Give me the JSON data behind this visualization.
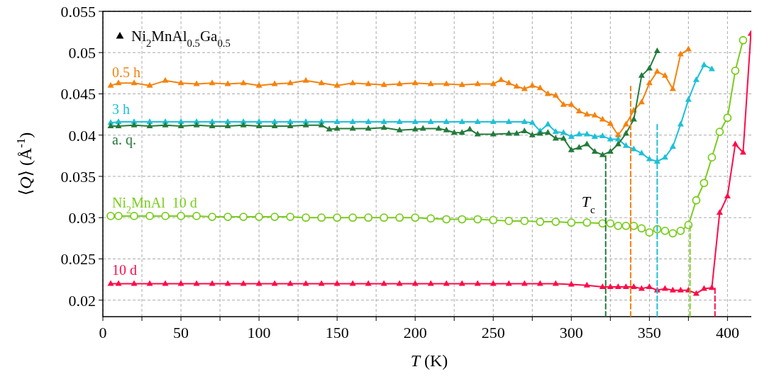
{
  "chart_data": {
    "type": "line",
    "xlabel": "T (K)",
    "ylabel": "⟨Q⟩ (Å$^{-1}$)",
    "xlim": [
      0,
      418
    ],
    "ylim": [
      0.018,
      0.055
    ],
    "xticks": [
      0,
      {
        "value": 25,
        "label": null
      },
      50,
      {
        "value": 75,
        "label": null
      },
      100,
      {
        "value": 125,
        "label": null
      },
      150,
      {
        "value": 175,
        "label": null
      },
      200,
      {
        "value": 225,
        "label": null
      },
      250,
      {
        "value": 275,
        "label": null
      },
      300,
      {
        "value": 325,
        "label": null
      },
      350,
      {
        "value": 375,
        "label": null
      },
      400
    ],
    "yticks": [
      0.02,
      0.025,
      0.03,
      0.035,
      0.04,
      0.045,
      0.05,
      0.055
    ],
    "grid": true,
    "marker": "triangle",
    "line_style": "solid",
    "annotations": [
      "Ni$_{2}$MnAl$_{0.5}$Ga$_{0.5}$",
      "T$_{c}$"
    ],
    "series": [
      {
        "name": "0.5 h",
        "color": "#f5820d",
        "x": [
          5,
          10,
          20,
          30,
          40,
          50,
          60,
          70,
          80,
          90,
          100,
          110,
          120,
          130,
          140,
          150,
          160,
          170,
          180,
          190,
          200,
          210,
          220,
          230,
          240,
          250,
          255,
          260,
          265,
          270,
          275,
          280,
          285,
          290,
          295,
          300,
          305,
          310,
          315,
          320,
          325,
          330,
          335,
          340,
          345,
          350,
          355,
          360,
          365,
          370,
          375
        ],
        "values": [
          0.046,
          0.0463,
          0.0463,
          0.046,
          0.0466,
          0.0463,
          0.0462,
          0.0463,
          0.0462,
          0.0463,
          0.046,
          0.0462,
          0.0463,
          0.0466,
          0.0463,
          0.046,
          0.0463,
          0.0462,
          0.0461,
          0.0462,
          0.0463,
          0.0462,
          0.0462,
          0.0461,
          0.0462,
          0.0462,
          0.0467,
          0.0463,
          0.0459,
          0.0456,
          0.046,
          0.0457,
          0.045,
          0.0448,
          0.0437,
          0.0437,
          0.0429,
          0.0425,
          0.0424,
          0.0419,
          0.0414,
          0.04,
          0.0413,
          0.043,
          0.044,
          0.0463,
          0.0477,
          0.0472,
          0.0456,
          0.0498,
          0.0504
        ]
      },
      {
        "name": "3 h",
        "color": "#1ec0d8",
        "x": [
          5,
          10,
          20,
          30,
          40,
          50,
          60,
          70,
          80,
          90,
          100,
          110,
          120,
          130,
          140,
          150,
          160,
          170,
          180,
          190,
          200,
          210,
          220,
          230,
          240,
          250,
          260,
          270,
          275,
          280,
          285,
          290,
          295,
          300,
          305,
          310,
          315,
          320,
          325,
          330,
          335,
          340,
          345,
          350,
          355,
          360,
          365,
          370,
          375,
          380,
          385,
          390
        ],
        "values": [
          0.0415,
          0.0416,
          0.0416,
          0.0416,
          0.0416,
          0.0416,
          0.0416,
          0.0416,
          0.0416,
          0.0416,
          0.0416,
          0.0416,
          0.0416,
          0.0416,
          0.0416,
          0.0416,
          0.0416,
          0.0416,
          0.0416,
          0.0416,
          0.0416,
          0.0416,
          0.0416,
          0.0416,
          0.0416,
          0.0416,
          0.0416,
          0.0416,
          0.0415,
          0.0405,
          0.0413,
          0.0404,
          0.0403,
          0.0398,
          0.0401,
          0.0401,
          0.0398,
          0.0399,
          0.0395,
          0.0395,
          0.0387,
          0.0383,
          0.0378,
          0.0371,
          0.0368,
          0.0373,
          0.0386,
          0.0413,
          0.0443,
          0.0467,
          0.0485,
          0.048
        ]
      },
      {
        "name": "a. q.",
        "color": "#237a3a",
        "x": [
          5,
          10,
          20,
          30,
          40,
          50,
          60,
          70,
          80,
          90,
          100,
          110,
          120,
          130,
          140,
          145,
          150,
          160,
          170,
          180,
          190,
          200,
          205,
          215,
          220,
          225,
          230,
          235,
          240,
          250,
          260,
          265,
          270,
          275,
          280,
          285,
          290,
          295,
          300,
          305,
          310,
          315,
          320,
          325,
          330,
          335,
          340,
          345,
          350,
          355
        ],
        "values": [
          0.0411,
          0.0411,
          0.0412,
          0.0411,
          0.0412,
          0.0411,
          0.0412,
          0.0411,
          0.0411,
          0.0412,
          0.0411,
          0.0411,
          0.0411,
          0.0412,
          0.0412,
          0.0407,
          0.0408,
          0.0408,
          0.0408,
          0.0409,
          0.0406,
          0.0407,
          0.0408,
          0.0408,
          0.0406,
          0.0403,
          0.0403,
          0.0407,
          0.0401,
          0.0401,
          0.0402,
          0.0402,
          0.0405,
          0.04,
          0.0402,
          0.0403,
          0.0396,
          0.0396,
          0.0382,
          0.0385,
          0.0389,
          0.038,
          0.0376,
          0.038,
          0.0389,
          0.0402,
          0.0419,
          0.0472,
          0.0481,
          0.0502
        ]
      },
      {
        "name": "Ni$_{2}$MnAl  10 d",
        "color": "#7acc1e",
        "marker": "circle",
        "x": [
          5,
          10,
          20,
          30,
          40,
          50,
          60,
          70,
          80,
          90,
          100,
          110,
          120,
          130,
          140,
          150,
          160,
          170,
          180,
          190,
          200,
          210,
          220,
          230,
          240,
          250,
          260,
          270,
          280,
          290,
          300,
          310,
          320,
          325,
          330,
          335,
          340,
          345,
          350,
          355,
          360,
          365,
          370,
          375,
          380,
          385,
          390,
          395,
          400,
          405,
          410
        ],
        "values": [
          0.0302,
          0.0302,
          0.0302,
          0.0302,
          0.0302,
          0.0302,
          0.0302,
          0.0301,
          0.0301,
          0.0301,
          0.0301,
          0.0301,
          0.0301,
          0.03,
          0.03,
          0.03,
          0.03,
          0.03,
          0.03,
          0.03,
          0.03,
          0.0299,
          0.0298,
          0.0298,
          0.0298,
          0.0297,
          0.0296,
          0.0296,
          0.0295,
          0.0295,
          0.0294,
          0.0294,
          0.0293,
          0.0293,
          0.029,
          0.029,
          0.029,
          0.0287,
          0.0282,
          0.0286,
          0.0284,
          0.0281,
          0.0284,
          0.0291,
          0.0321,
          0.0342,
          0.0373,
          0.0404,
          0.0421,
          0.0478,
          0.0515
        ]
      },
      {
        "name": "10 d",
        "color": "#ff0a47",
        "x": [
          5,
          10,
          20,
          30,
          40,
          50,
          60,
          70,
          80,
          90,
          100,
          110,
          120,
          130,
          140,
          150,
          160,
          170,
          180,
          190,
          200,
          210,
          220,
          230,
          240,
          250,
          260,
          270,
          280,
          290,
          300,
          310,
          320,
          325,
          330,
          335,
          340,
          345,
          350,
          355,
          360,
          365,
          370,
          375,
          380,
          385,
          390,
          395,
          400,
          405,
          410,
          415
        ],
        "values": [
          0.022,
          0.022,
          0.022,
          0.022,
          0.022,
          0.022,
          0.022,
          0.022,
          0.022,
          0.022,
          0.022,
          0.022,
          0.022,
          0.022,
          0.022,
          0.022,
          0.022,
          0.022,
          0.022,
          0.022,
          0.022,
          0.022,
          0.022,
          0.022,
          0.022,
          0.022,
          0.022,
          0.022,
          0.022,
          0.022,
          0.0219,
          0.0218,
          0.0216,
          0.0216,
          0.0216,
          0.0216,
          0.0216,
          0.0214,
          0.0216,
          0.0212,
          0.0214,
          0.0212,
          0.0212,
          0.0212,
          0.0208,
          0.0214,
          0.0215,
          0.0306,
          0.0326,
          0.0389,
          0.0379,
          0.0523
        ]
      },
      {
        "color": "#237a3a",
        "marker": "none",
        "line_style": "dashed",
        "x": [
          322,
          322
        ],
        "values": [
          0.018,
          0.0376
        ]
      },
      {
        "color": "#f5820d",
        "marker": "none",
        "line_style": "dashed",
        "x": [
          338,
          338
        ],
        "values": [
          0.018,
          0.0459
        ]
      },
      {
        "color": "#1ec0d8",
        "marker": "none",
        "line_style": "dashed",
        "x": [
          355,
          355
        ],
        "values": [
          0.018,
          0.0414
        ]
      },
      {
        "color": "#7acc1e",
        "marker": "none",
        "line_style": "dashed",
        "x": [
          376,
          376
        ],
        "values": [
          0.018,
          0.0291
        ]
      },
      {
        "color": "#ff0a47",
        "marker": "none",
        "line_style": "dashed",
        "x": [
          392,
          392
        ],
        "values": [
          0.018,
          0.0215
        ]
      }
    ]
  }
}
